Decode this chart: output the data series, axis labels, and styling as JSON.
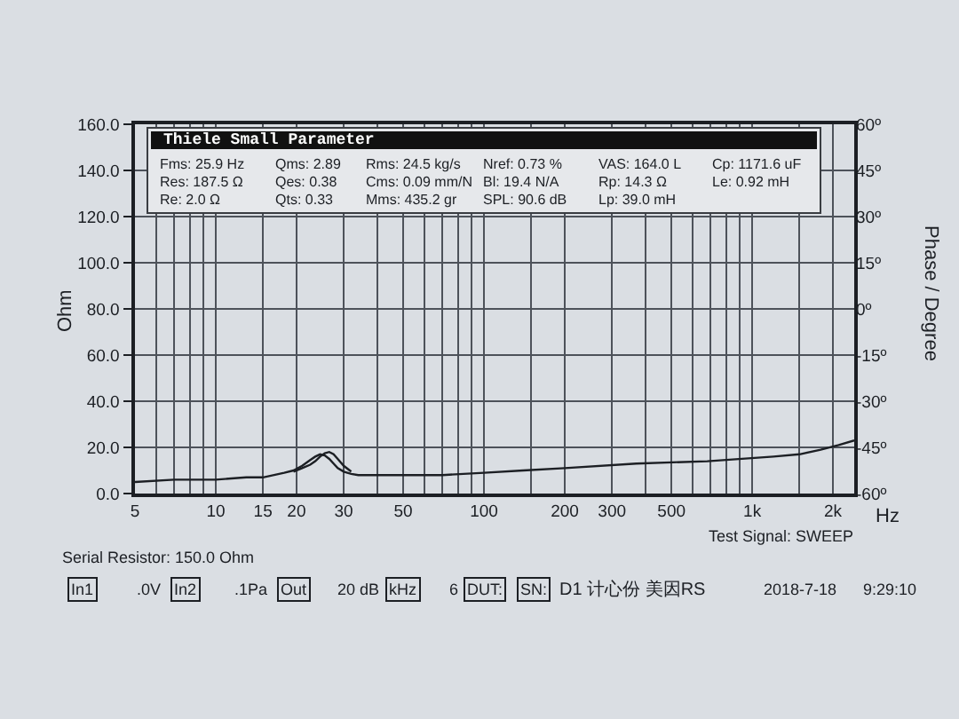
{
  "chart_data": {
    "type": "line",
    "xlabel": "Hz",
    "ylabel": "Ohm",
    "y2label": "Phase / Degree",
    "x": [
      5,
      7,
      10,
      13,
      15,
      18,
      19.5,
      21,
      22.5,
      23.5,
      24.5,
      25.5,
      26.5,
      27.5,
      28.5,
      30,
      32,
      34,
      38,
      50,
      70,
      100,
      140,
      200,
      370,
      680,
      1200,
      1500,
      1800,
      2100,
      2400
    ],
    "series": [
      {
        "color": "#1c1f24",
        "values": [
          5,
          6,
          6,
          7,
          7,
          9,
          10,
          12,
          14.5,
          16,
          17,
          16.5,
          15,
          13,
          11,
          9.5,
          8.5,
          8,
          8,
          8,
          8,
          9,
          10,
          11,
          13,
          14,
          16,
          17,
          19,
          21,
          23
        ]
      },
      {
        "color": "#1c1f24",
        "values": [
          null,
          null,
          null,
          null,
          null,
          null,
          9.5,
          11,
          12.5,
          14,
          16,
          17.5,
          18,
          17,
          15,
          12,
          9.5,
          null,
          null,
          null,
          null,
          null,
          null,
          null,
          null,
          null,
          null,
          null,
          null,
          null,
          null
        ]
      }
    ],
    "log": "x",
    "xlim": [
      5,
      2400
    ],
    "xticks": [
      5,
      {
        "value": 6,
        "label": null
      },
      {
        "value": 7,
        "label": null
      },
      {
        "value": 8,
        "label": null
      },
      {
        "value": 9,
        "label": null
      },
      10,
      15,
      20,
      30,
      {
        "value": 40,
        "label": null
      },
      50,
      {
        "value": 60,
        "label": null
      },
      {
        "value": 70,
        "label": null
      },
      {
        "value": 80,
        "label": null
      },
      {
        "value": 90,
        "label": null
      },
      100,
      {
        "value": 150,
        "label": null
      },
      200,
      300,
      {
        "value": 400,
        "label": null
      },
      500,
      {
        "value": 600,
        "label": null
      },
      {
        "value": 700,
        "label": null
      },
      {
        "value": 800,
        "label": null
      },
      {
        "value": 900,
        "label": null
      },
      {
        "value": 1000,
        "label": "1k"
      },
      {
        "value": 1500,
        "label": null
      },
      {
        "value": 2000,
        "label": "2k"
      }
    ],
    "ylim": [
      0,
      160
    ],
    "yticks": [
      {
        "value": 0,
        "label": "0.0"
      },
      {
        "value": 20,
        "label": "20.0"
      },
      {
        "value": 40,
        "label": "40.0"
      },
      {
        "value": 60,
        "label": "60.0"
      },
      {
        "value": 80,
        "label": "80.0"
      },
      {
        "value": 100,
        "label": "100.0"
      },
      {
        "value": 120,
        "label": "120.0"
      },
      {
        "value": 140,
        "label": "140.0"
      },
      {
        "value": 160,
        "label": "160.0"
      }
    ],
    "y2lim": [
      -60,
      60
    ],
    "y2ticks": [
      {
        "value": -60,
        "label": "-60º"
      },
      {
        "value": -45,
        "label": "-45º"
      },
      {
        "value": -30,
        "label": "-30º"
      },
      {
        "value": -15,
        "label": "-15º"
      },
      {
        "value": 0,
        "label": "0º"
      },
      {
        "value": 15,
        "label": "15º"
      },
      {
        "value": 30,
        "label": "30º"
      },
      {
        "value": 45,
        "label": "45º"
      },
      {
        "value": 60,
        "label": "60º"
      }
    ],
    "grid": true,
    "annotations": [
      "Thiele Small Parameter",
      "Fms: 25.9 Hz",
      "Qms: 2.89",
      "Rms: 24.5 kg/s",
      "Nref: 0.73 %",
      "VAS: 164.0 L",
      "Cp: 1171.6 uF",
      "Res: 187.5 Ω",
      "Qes: 0.38",
      "Cms: 0.09 mm/N",
      "Bl: 19.4 N/A",
      "Rp: 14.3 Ω",
      "Le: 0.92 mH",
      "Re: 2.0 Ω",
      "Qts: 0.33",
      "Mms: 435.2 gr",
      "SPL: 90.6 dB",
      "Lp: 39.0 mH",
      "Serial Resistor: 150.0 Ohm",
      "Test Signal: SWEEP",
      "In1",
      ".0V",
      "In2",
      ".1Pa",
      "Out",
      "20 dB",
      "kHz",
      "6",
      "DUT:",
      "SN:",
      "D1 计心份 美因RS",
      "2018-7-18",
      "9:29:10"
    ]
  }
}
